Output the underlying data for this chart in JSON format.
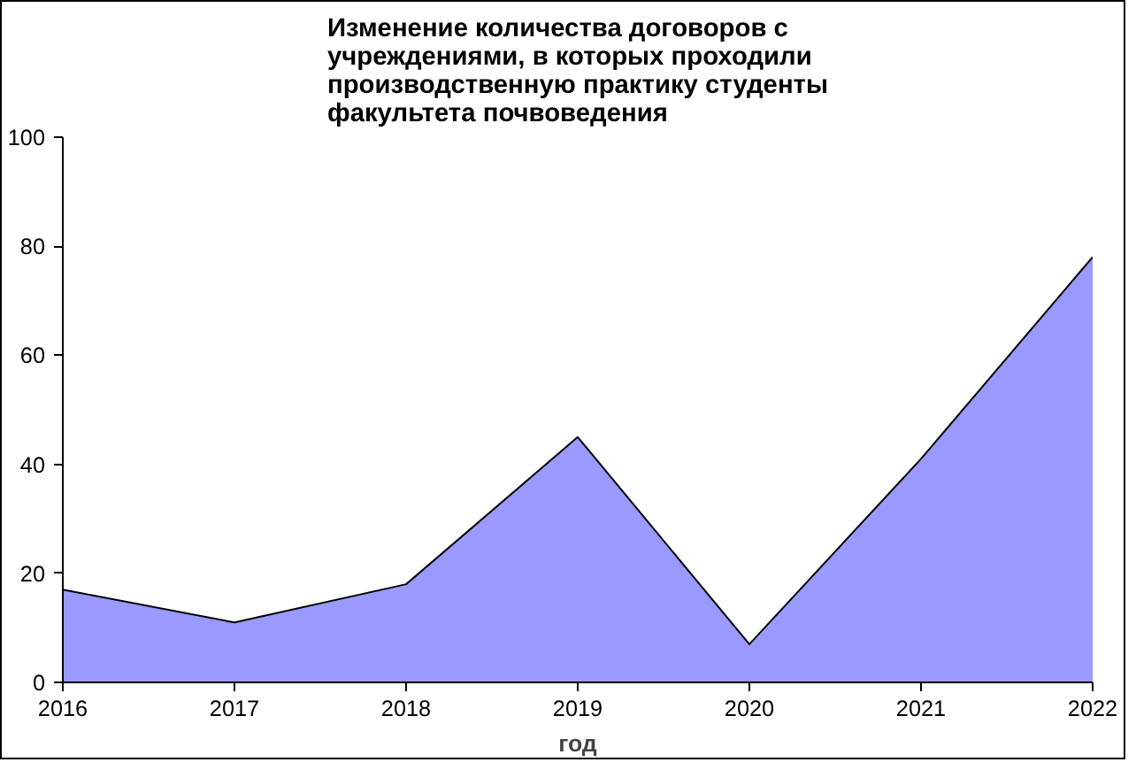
{
  "chart_data": {
    "type": "area",
    "title": "Изменение количества договоров с учреждениями, в которых проходили производственную практику студенты факультета почвоведения",
    "xlabel": "год",
    "categories": [
      "2016",
      "2017",
      "2018",
      "2019",
      "2020",
      "2021",
      "2022"
    ],
    "series": [
      {
        "color": "#9999ff",
        "values": [
          17,
          11,
          18,
          45,
          7,
          41,
          78
        ]
      }
    ],
    "ylim": [
      0,
      100
    ],
    "yticks": [
      0,
      20,
      40,
      60,
      80,
      100
    ],
    "grid": false
  }
}
